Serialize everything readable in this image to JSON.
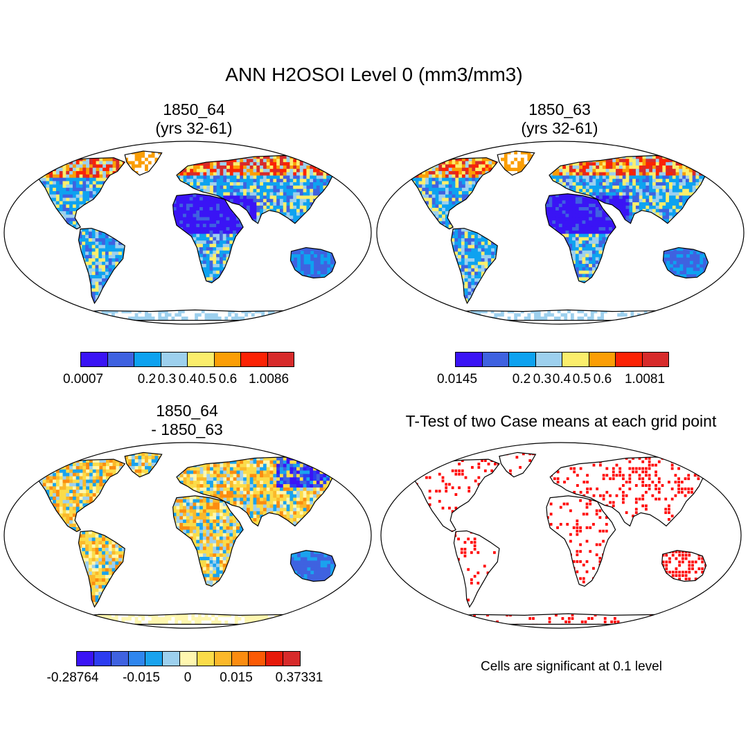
{
  "main_title": "ANN H2OSOI Level 0 (mm3/mm3)",
  "panels": [
    {
      "title_line1": "1850_64",
      "title_line2": "(yrs 32-61)",
      "map_style": "field",
      "colorbar": {
        "colors": [
          "#3a14f5",
          "#3f62e0",
          "#0ea2f0",
          "#9dd0ee",
          "#fbee6c",
          "#fb9e06",
          "#fb2305",
          "#d72b2b"
        ],
        "labels": [
          "0.0007",
          "0.2",
          "0.3",
          "0.4",
          "0.5",
          "0.6",
          "1.0086"
        ]
      }
    },
    {
      "title_line1": "1850_63",
      "title_line2": "(yrs 32-61)",
      "map_style": "field",
      "colorbar": {
        "colors": [
          "#3a14f5",
          "#3f62e0",
          "#0ea2f0",
          "#9dd0ee",
          "#fbee6c",
          "#fb9e06",
          "#fb2305",
          "#d72b2b"
        ],
        "labels": [
          "0.0145",
          "0.2",
          "0.3",
          "0.4",
          "0.5",
          "0.6",
          "1.0081"
        ]
      }
    },
    {
      "title_line1": "1850_64",
      "title_line2": "- 1850_63",
      "map_style": "diff",
      "colorbar": {
        "colors": [
          "#3a14f5",
          "#2c3cf0",
          "#3f62e0",
          "#2f86ee",
          "#1aa3ee",
          "#9dd0ee",
          "#fff7b0",
          "#fbdc4a",
          "#fbb82a",
          "#fb8c10",
          "#fb5a05",
          "#e61a0a",
          "#d72b2b"
        ],
        "labels": [
          "-0.28764",
          "-0.015",
          "0",
          "0.015",
          "0.37331"
        ]
      }
    },
    {
      "title_line1": "T-Test of two Case means at each grid point",
      "map_style": "ttest",
      "note": "Cells are significant at 0.1 level"
    }
  ]
}
